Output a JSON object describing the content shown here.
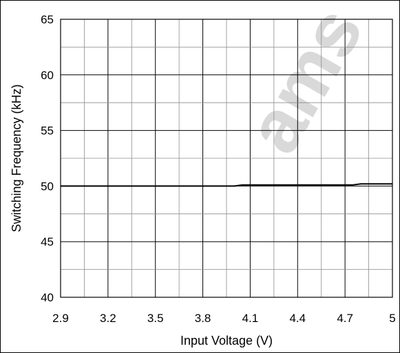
{
  "chart_data": {
    "type": "line",
    "title": "",
    "xlabel": "Input Voltage (V)",
    "ylabel": "Switching Frequency (kHz)",
    "xlim": [
      2.9,
      5.0
    ],
    "ylim": [
      40,
      65
    ],
    "x_ticks": [
      "2.9",
      "3.2",
      "3.5",
      "3.8",
      "4.1",
      "4.4",
      "4.7",
      "5"
    ],
    "y_ticks": [
      "40",
      "45",
      "50",
      "55",
      "60",
      "65"
    ],
    "grid": true,
    "watermark": "ams",
    "series": [
      {
        "color": "#000000",
        "x": [
          2.9,
          3.2,
          3.5,
          3.8,
          4.0,
          4.05,
          4.1,
          4.4,
          4.7,
          4.75,
          4.8,
          5.0
        ],
        "y": [
          50.0,
          50.0,
          50.0,
          50.0,
          50.0,
          50.1,
          50.1,
          50.1,
          50.1,
          50.1,
          50.2,
          50.2
        ]
      }
    ]
  }
}
